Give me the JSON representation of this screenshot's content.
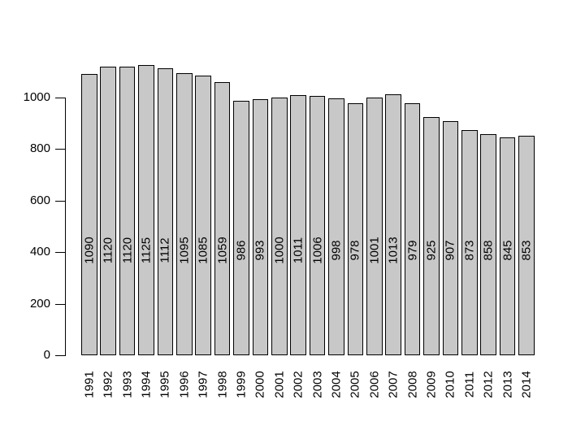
{
  "chart_data": {
    "type": "bar",
    "title": "",
    "xlabel": "",
    "ylabel": "",
    "categories": [
      "1991",
      "1992",
      "1993",
      "1994",
      "1995",
      "1996",
      "1997",
      "1998",
      "1999",
      "2000",
      "2001",
      "2002",
      "2003",
      "2004",
      "2005",
      "2006",
      "2007",
      "2008",
      "2009",
      "2010",
      "2011",
      "2012",
      "2013",
      "2014"
    ],
    "values": [
      1090,
      1120,
      1120,
      1125,
      1112,
      1095,
      1085,
      1059,
      986,
      993,
      1000,
      1011,
      1006,
      998,
      978,
      1001,
      1013,
      979,
      925,
      907,
      873,
      858,
      845,
      853
    ],
    "value_labels": [
      "1090",
      "1120",
      "1120",
      "1125",
      "1112",
      "1095",
      "1085",
      "1059",
      "986",
      "993",
      "1000",
      "1011",
      "1006",
      "998",
      "978",
      "1001",
      "1013",
      "979",
      "925",
      "907",
      "873",
      "858",
      "845",
      "853"
    ],
    "yticks": [
      0,
      200,
      400,
      600,
      800,
      1000
    ],
    "ytick_labels": [
      "0",
      "200",
      "400",
      "600",
      "800",
      "1000"
    ],
    "ylim": [
      0,
      1000
    ],
    "grid": false,
    "legend": false,
    "value_labels_inside_bars": true,
    "value_label_rotation_deg": -90,
    "x_tick_label_rotation_deg": -90,
    "colors": {
      "bar_fill": "#c8c8c8",
      "bar_border": "#000000",
      "axis": "#000000",
      "text": "#000000",
      "background": "#ffffff"
    }
  }
}
